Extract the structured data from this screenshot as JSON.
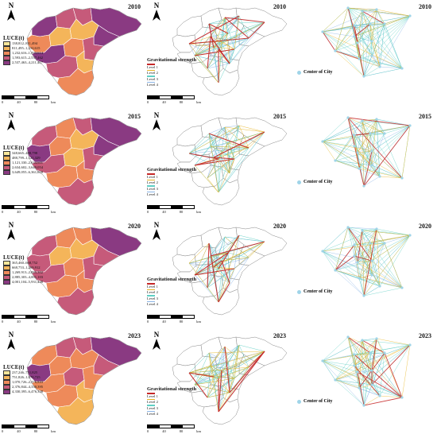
{
  "rows": [
    {
      "year": "2010",
      "legend_title": "LUCE(t)",
      "classes": [
        "138,812–811,494",
        "811,495–1,232,615",
        "1,232,616–1,593,614",
        "1,593,615–2,537,462",
        "2,537,463–4,211,457"
      ],
      "grav_title": "Gravitational strength",
      "grav_levels": [
        "Level 1",
        "Level 2",
        "Level 3",
        "Level 4"
      ]
    },
    {
      "year": "2015",
      "legend_title": "LUCE(t)",
      "classes": [
        "348,665–488,798",
        "488,799–1,121,329",
        "1,121,330–2,634,601",
        "2,634,602–3,649,054",
        "3,649,055–6,361,658"
      ],
      "grav_title": "Gravitational strength",
      "grav_levels": [
        "Level 1",
        "Level 2",
        "Level 3",
        "Level 4"
      ]
    },
    {
      "year": "2020",
      "legend_title": "LUCE(t)",
      "classes": [
        "365,460–668,752",
        "668,753–1,269,912",
        "1,269,913–2,885,302",
        "2,885,303–4,001,103",
        "4,001,104–5,931,448"
      ],
      "grav_title": "Gravitational strength",
      "grav_levels": [
        "Level 1",
        "Level 2",
        "Level 3",
        "Level 4"
      ]
    },
    {
      "year": "2023",
      "legend_title": "LUCE(t)",
      "classes": [
        "237,246–751,825",
        "751,826–1,070,725",
        "1,070,726–2,376,843",
        "2,376,844–4,330,395",
        "4,330,395–6,476,338"
      ],
      "grav_title": "Gravitational strength",
      "grav_levels": [
        "Level 1",
        "Level 2",
        "Level 3",
        "Level 4"
      ]
    }
  ],
  "north_label": "N",
  "scale": {
    "ticks": [
      "0",
      "40",
      "80"
    ],
    "unit": "km"
  },
  "center_of_city": "Center of City",
  "colors": {
    "class1": "#f8e79a",
    "class2": "#f4b55a",
    "class3": "#ee8a5a",
    "class4": "#c65a7a",
    "class5": "#8a3a82",
    "level1": "#c62828",
    "level2": "#e6b422",
    "level3": "#5fcfc4",
    "level4": "#8ab4e6"
  }
}
